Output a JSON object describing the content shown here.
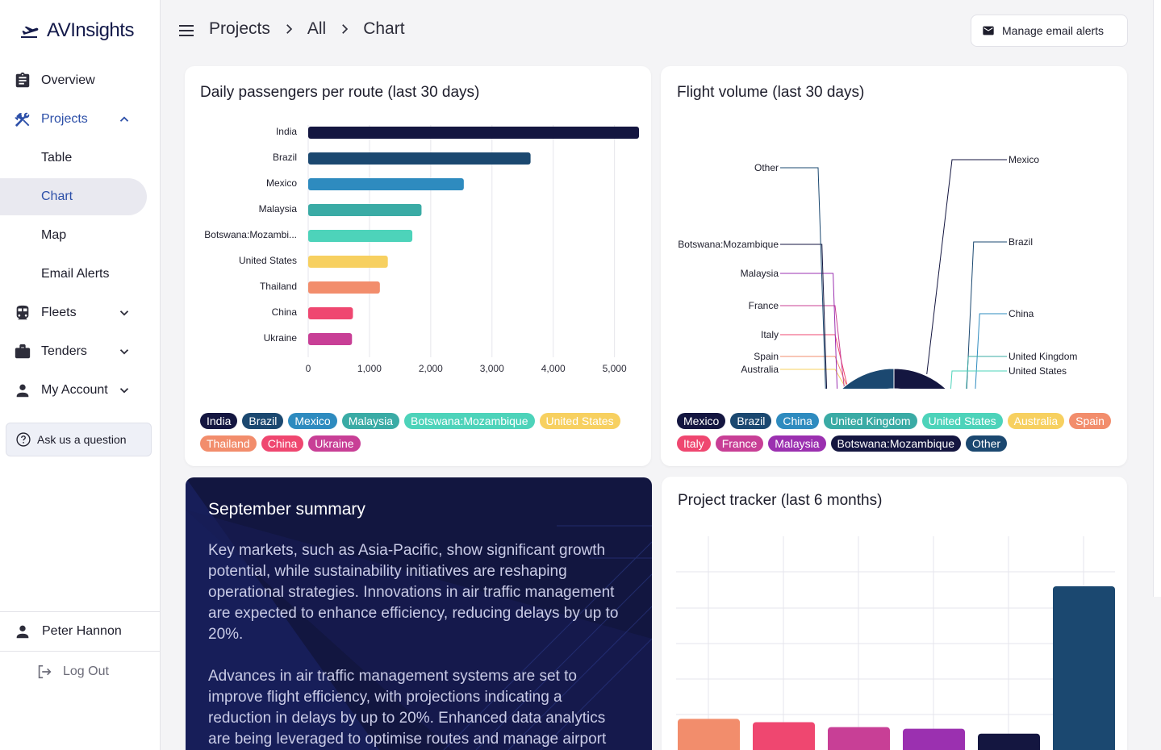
{
  "app": {
    "logo_text": "AVInsights",
    "logo_icon": "plane-icon"
  },
  "sidebar": {
    "items": [
      {
        "label": "Overview",
        "icon": "clipboard-icon"
      },
      {
        "label": "Projects",
        "icon": "tools-icon"
      },
      {
        "label": "Table"
      },
      {
        "label": "Chart"
      },
      {
        "label": "Map"
      },
      {
        "label": "Email Alerts"
      },
      {
        "label": "Fleets",
        "icon": "train-icon"
      },
      {
        "label": "Tenders",
        "icon": "briefcase-icon"
      },
      {
        "label": "My Account",
        "icon": "person-icon"
      }
    ],
    "ask_label": "Ask us a question",
    "user_name": "Peter Hannon",
    "logout_label": "Log Out"
  },
  "header": {
    "breadcrumbs": [
      "Projects",
      "All",
      "Chart"
    ],
    "mail_button": "Manage email alerts"
  },
  "colors": {
    "India": "#141640",
    "Brazil": "#1b4870",
    "Mexico": "#2e8bbf",
    "Malaysia": "#3aaba5",
    "Botswana": "#4dd3ba",
    "United States": "#f7d060",
    "Thailand": "#f28d6c",
    "China": "#ef4770",
    "Ukraine": "#c83f96"
  },
  "passengers": {
    "title": "Daily passengers per route (last 30 days)",
    "chart_data": {
      "type": "bar",
      "orientation": "horizontal",
      "categories": [
        "India",
        "Brazil",
        "Mexico",
        "Malaysia",
        "Botswana:Mozambi...",
        "United States",
        "Thailand",
        "China",
        "Ukraine"
      ],
      "values": [
        5400,
        3630,
        2540,
        1850,
        1700,
        1300,
        1170,
        730,
        715
      ],
      "colors": [
        "#141640",
        "#1b4870",
        "#2e8bbf",
        "#3aaba5",
        "#4dd3ba",
        "#f7d060",
        "#f28d6c",
        "#ef4770",
        "#c83f96"
      ],
      "xticks": [
        "0",
        "1,000",
        "2,000",
        "3,000",
        "4,000",
        "5,000"
      ],
      "xlim": [
        0,
        5400
      ]
    },
    "legend": [
      {
        "label": "India",
        "color": "#141640"
      },
      {
        "label": "Brazil",
        "color": "#1b4870"
      },
      {
        "label": "Mexico",
        "color": "#2e8bbf"
      },
      {
        "label": "Malaysia",
        "color": "#3aaba5"
      },
      {
        "label": "Botswana:Mozambique",
        "color": "#4dd3ba"
      },
      {
        "label": "United States",
        "color": "#f7d060"
      },
      {
        "label": "Thailand",
        "color": "#f28d6c"
      },
      {
        "label": "China",
        "color": "#ef4770"
      },
      {
        "label": "Ukraine",
        "color": "#c83f96"
      }
    ]
  },
  "flights": {
    "title": "Flight volume (last 30 days)",
    "chart_data": {
      "type": "pie",
      "donut": true,
      "slices": [
        {
          "label": "Mexico",
          "value": 12,
          "color": "#141640"
        },
        {
          "label": "Brazil",
          "value": 8,
          "color": "#1b4870"
        },
        {
          "label": "China",
          "value": 7,
          "color": "#2e8bbf"
        },
        {
          "label": "United Kingdom",
          "value": 5,
          "color": "#3aaba5"
        },
        {
          "label": "United States",
          "value": 4.5,
          "color": "#4dd3ba"
        },
        {
          "label": "Australia",
          "value": 4,
          "color": "#f7d060"
        },
        {
          "label": "Spain",
          "value": 3.5,
          "color": "#f28d6c"
        },
        {
          "label": "Italy",
          "value": 4,
          "color": "#ef4770"
        },
        {
          "label": "France",
          "value": 4,
          "color": "#c83f96"
        },
        {
          "label": "Malaysia",
          "value": 3.5,
          "color": "#9b30b0"
        },
        {
          "label": "Botswana:Mozambique",
          "value": 2.5,
          "color": "#141640"
        },
        {
          "label": "Other",
          "value": 29,
          "color": "#1b4870"
        }
      ]
    },
    "legend": [
      {
        "label": "Mexico",
        "color": "#141640"
      },
      {
        "label": "Brazil",
        "color": "#1b4870"
      },
      {
        "label": "China",
        "color": "#2e8bbf"
      },
      {
        "label": "United Kingdom",
        "color": "#3aaba5"
      },
      {
        "label": "United States",
        "color": "#4dd3ba"
      },
      {
        "label": "Australia",
        "color": "#f7d060"
      },
      {
        "label": "Spain",
        "color": "#f28d6c"
      },
      {
        "label": "Italy",
        "color": "#ef4770"
      },
      {
        "label": "France",
        "color": "#c83f96"
      },
      {
        "label": "Malaysia",
        "color": "#9b30b0"
      },
      {
        "label": "Botswana:Mozambique",
        "color": "#141640"
      },
      {
        "label": "Other",
        "color": "#1b4870"
      }
    ]
  },
  "summary": {
    "title": "September summary",
    "para1": "Key markets, such as Asia-Pacific, show significant growth potential, while sustainability initiatives are reshaping operational strategies. Innovations in air traffic management are expected to enhance efficiency, reducing delays by up to 20%.",
    "para2": "Advances in air traffic management systems are set to improve flight efficiency, with projections indicating a reduction in delays by up to 20%. Enhanced data analytics are being leveraged to optimise routes and manage airport"
  },
  "tracker": {
    "title": "Project tracker  (last 6 months)",
    "chart_data": {
      "type": "bar",
      "bars": [
        {
          "value": 0.19,
          "color": "#f28d6c"
        },
        {
          "value": 0.17,
          "color": "#ef4770"
        },
        {
          "value": 0.14,
          "color": "#c83f96"
        },
        {
          "value": 0.13,
          "color": "#9b30b0"
        },
        {
          "value": 0.1,
          "color": "#141640"
        },
        {
          "value": 1.0,
          "color": "#1b4870"
        }
      ]
    }
  }
}
